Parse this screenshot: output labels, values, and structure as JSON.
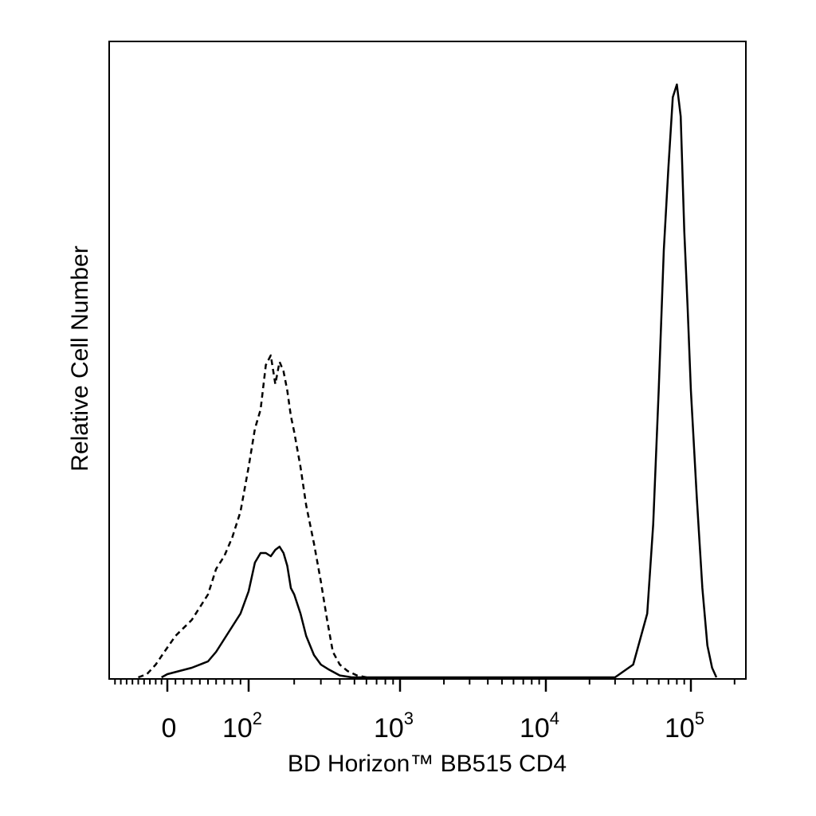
{
  "chart_data": {
    "type": "line",
    "title": "",
    "xlabel": "BD Horizon™ BB515 CD4",
    "ylabel": "Relative Cell Number",
    "x_scale": "biexponential",
    "grid": false,
    "legend": "none",
    "x_ticks": [
      {
        "value": 0,
        "base": "0",
        "exp": ""
      },
      {
        "value": 100,
        "base": "10",
        "exp": "2"
      },
      {
        "value": 1000,
        "base": "10",
        "exp": "3"
      },
      {
        "value": 10000,
        "base": "10",
        "exp": "4"
      },
      {
        "value": 100000,
        "base": "10",
        "exp": "5"
      }
    ],
    "y_range": [
      0,
      100
    ],
    "series": [
      {
        "style": "dashed",
        "color": "#000000",
        "points": [
          [
            -100,
            0
          ],
          [
            -70,
            0.5
          ],
          [
            -40,
            2
          ],
          [
            -10,
            4
          ],
          [
            10,
            6.5
          ],
          [
            30,
            9
          ],
          [
            50,
            13
          ],
          [
            60,
            17
          ],
          [
            70,
            19
          ],
          [
            80,
            22
          ],
          [
            90,
            26
          ],
          [
            100,
            33
          ],
          [
            110,
            39
          ],
          [
            120,
            42
          ],
          [
            130,
            49
          ],
          [
            140,
            50.5
          ],
          [
            150,
            46
          ],
          [
            160,
            49.5
          ],
          [
            170,
            48
          ],
          [
            180,
            45
          ],
          [
            190,
            41
          ],
          [
            200,
            38.5
          ],
          [
            220,
            33
          ],
          [
            240,
            27
          ],
          [
            270,
            21
          ],
          [
            300,
            15
          ],
          [
            330,
            9
          ],
          [
            360,
            4
          ],
          [
            400,
            2
          ],
          [
            450,
            1
          ],
          [
            520,
            0.3
          ],
          [
            600,
            0
          ]
        ]
      },
      {
        "style": "solid",
        "color": "#000000",
        "points": [
          [
            -20,
            0
          ],
          [
            0,
            0.5
          ],
          [
            30,
            1.5
          ],
          [
            50,
            2.5
          ],
          [
            60,
            4
          ],
          [
            70,
            6
          ],
          [
            80,
            8
          ],
          [
            90,
            10
          ],
          [
            100,
            13.5
          ],
          [
            110,
            18
          ],
          [
            120,
            19.5
          ],
          [
            130,
            19.5
          ],
          [
            140,
            19
          ],
          [
            150,
            20
          ],
          [
            160,
            20.5
          ],
          [
            170,
            19.5
          ],
          [
            180,
            17.5
          ],
          [
            190,
            14
          ],
          [
            200,
            13
          ],
          [
            220,
            10
          ],
          [
            240,
            6.5
          ],
          [
            270,
            3.5
          ],
          [
            300,
            2
          ],
          [
            340,
            1.2
          ],
          [
            400,
            0.3
          ],
          [
            480,
            0
          ],
          [
            30000,
            0
          ],
          [
            40000,
            2
          ],
          [
            50000,
            10
          ],
          [
            55000,
            24
          ],
          [
            60000,
            45
          ],
          [
            65000,
            67
          ],
          [
            70000,
            80
          ],
          [
            75000,
            91
          ],
          [
            80000,
            93
          ],
          [
            85000,
            88
          ],
          [
            90000,
            70
          ],
          [
            95000,
            58
          ],
          [
            100000,
            45
          ],
          [
            110000,
            28
          ],
          [
            120000,
            14
          ],
          [
            130000,
            5
          ],
          [
            140000,
            1.5
          ],
          [
            150000,
            0
          ]
        ]
      }
    ]
  }
}
